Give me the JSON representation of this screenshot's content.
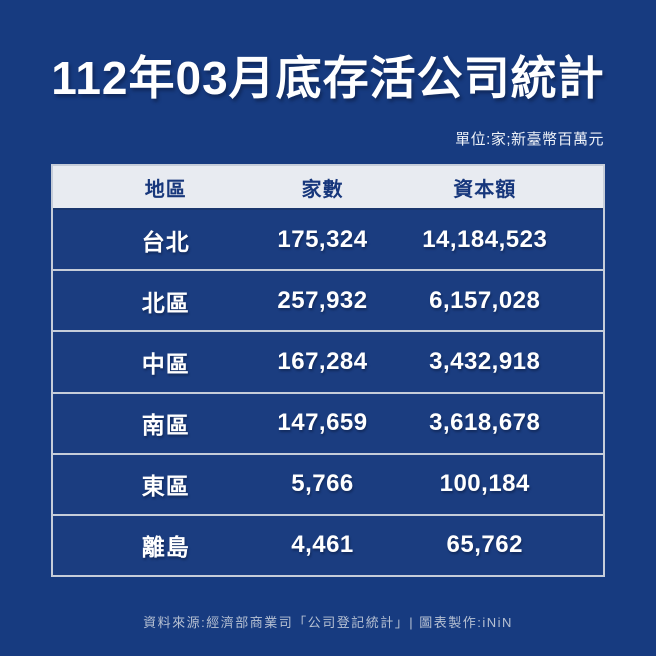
{
  "page": {
    "title": "112年03月底存活公司統計",
    "unit_note": "單位:家;新臺幣百萬元",
    "footer": "資料來源:經濟部商業司「公司登記統計」| 圖表製作:iNiN",
    "colors": {
      "background": "#173B80",
      "header_background": "#E8EBF1",
      "header_text": "#17377C",
      "row_background": "#1B3D80",
      "row_text": "#FFFFFF",
      "table_border": "#C6CDD9"
    }
  },
  "table": {
    "columns": [
      "地區",
      "家數",
      "資本額"
    ],
    "rows": [
      {
        "region": "台北",
        "count": "175,324",
        "capital": "14,184,523"
      },
      {
        "region": "北區",
        "count": "257,932",
        "capital": "6,157,028"
      },
      {
        "region": "中區",
        "count": "167,284",
        "capital": "3,432,918"
      },
      {
        "region": "南區",
        "count": "147,659",
        "capital": "3,618,678"
      },
      {
        "region": "東區",
        "count": "5,766",
        "capital": "100,184"
      },
      {
        "region": "離島",
        "count": "4,461",
        "capital": "65,762"
      }
    ]
  },
  "chart_data": {
    "type": "table",
    "title": "112年03月底存活公司統計",
    "unit_note": "單位:家;新臺幣百萬元",
    "columns": [
      "地區",
      "家數",
      "資本額"
    ],
    "rows": [
      [
        "台北",
        175324,
        14184523
      ],
      [
        "北區",
        257932,
        6157028
      ],
      [
        "中區",
        167284,
        3432918
      ],
      [
        "南區",
        147659,
        3618678
      ],
      [
        "東區",
        5766,
        100184
      ],
      [
        "離島",
        4461,
        65762
      ]
    ],
    "source": "資料來源:經濟部商業司「公司登記統計」| 圖表製作:iNiN"
  }
}
